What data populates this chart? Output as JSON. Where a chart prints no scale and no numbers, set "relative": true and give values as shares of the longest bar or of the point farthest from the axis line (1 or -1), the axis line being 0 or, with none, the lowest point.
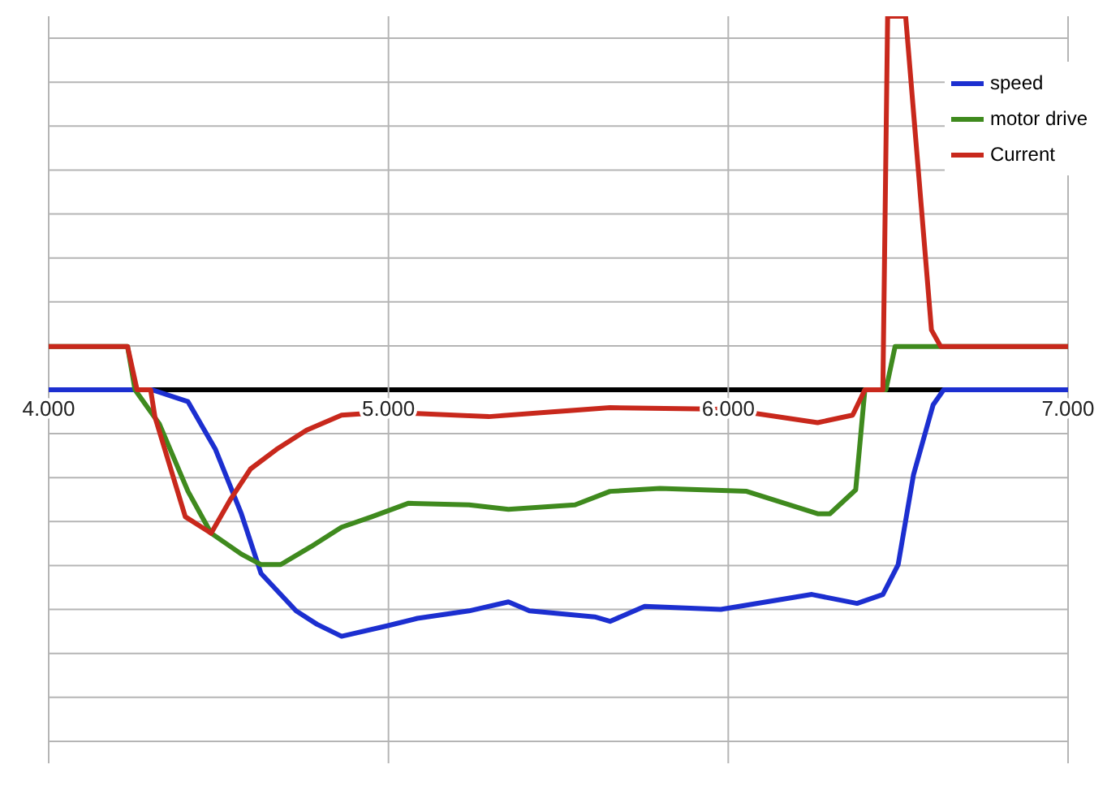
{
  "chart_data": {
    "type": "line",
    "relative": true,
    "grid": true,
    "legend": "top right",
    "marker": "none",
    "line_style": "solid",
    "xlim": [
      4,
      7
    ],
    "xticks": [
      {
        "value": 4,
        "label": "4.000"
      },
      {
        "value": 5,
        "label": "5.000"
      },
      {
        "value": 6,
        "label": "6.000"
      },
      {
        "value": 7,
        "label": "7.000"
      }
    ],
    "series": [
      {
        "name": "speed",
        "color": "#1c2fd0",
        "x": [
          4,
          4.304,
          4.41,
          4.491,
          4.567,
          4.625,
          4.728,
          4.79,
          4.862,
          4.996,
          5.085,
          5.237,
          5.353,
          5.415,
          5.607,
          5.652,
          5.754,
          5.978,
          6.246,
          6.379,
          6.455,
          6.5,
          6.545,
          6.603,
          6.634,
          7
        ],
        "values": [
          0,
          0,
          -0.032,
          -0.16,
          -0.332,
          -0.492,
          -0.592,
          -0.628,
          -0.66,
          -0.632,
          -0.612,
          -0.592,
          -0.568,
          -0.592,
          -0.608,
          -0.62,
          -0.58,
          -0.588,
          -0.548,
          -0.572,
          -0.548,
          -0.468,
          -0.228,
          -0.04,
          0,
          0
        ]
      },
      {
        "name": "motor drive",
        "color": "#3f8a1e",
        "x": [
          4,
          4.232,
          4.254,
          4.326,
          4.41,
          4.478,
          4.567,
          4.625,
          4.683,
          4.772,
          4.862,
          4.951,
          5.058,
          5.237,
          5.353,
          5.549,
          5.652,
          5.799,
          6.054,
          6.263,
          6.299,
          6.375,
          6.402,
          6.464,
          6.491,
          7
        ],
        "values": [
          0.116,
          0.116,
          0,
          -0.092,
          -0.272,
          -0.384,
          -0.44,
          -0.468,
          -0.468,
          -0.42,
          -0.368,
          -0.34,
          -0.304,
          -0.308,
          -0.32,
          -0.308,
          -0.272,
          -0.264,
          -0.272,
          -0.332,
          -0.332,
          -0.268,
          0,
          0,
          0.116,
          0.116
        ]
      },
      {
        "name": "Current",
        "color": "#c8281c",
        "x": [
          4,
          4.232,
          4.26,
          4.3,
          4.3125,
          4.402,
          4.478,
          4.536,
          4.594,
          4.67,
          4.759,
          4.862,
          4.996,
          5.295,
          5.473,
          5.652,
          5.996,
          6.263,
          6.366,
          6.402,
          6.455,
          6.469,
          6.522,
          6.598,
          6.625,
          7
        ],
        "values": [
          0.116,
          0.116,
          0,
          0,
          -0.072,
          -0.34,
          -0.384,
          -0.292,
          -0.212,
          -0.16,
          -0.108,
          -0.068,
          -0.06,
          -0.072,
          -0.06,
          -0.048,
          -0.052,
          -0.088,
          -0.068,
          0,
          0,
          1,
          1,
          0.16,
          0.116,
          0.116
        ]
      }
    ]
  }
}
